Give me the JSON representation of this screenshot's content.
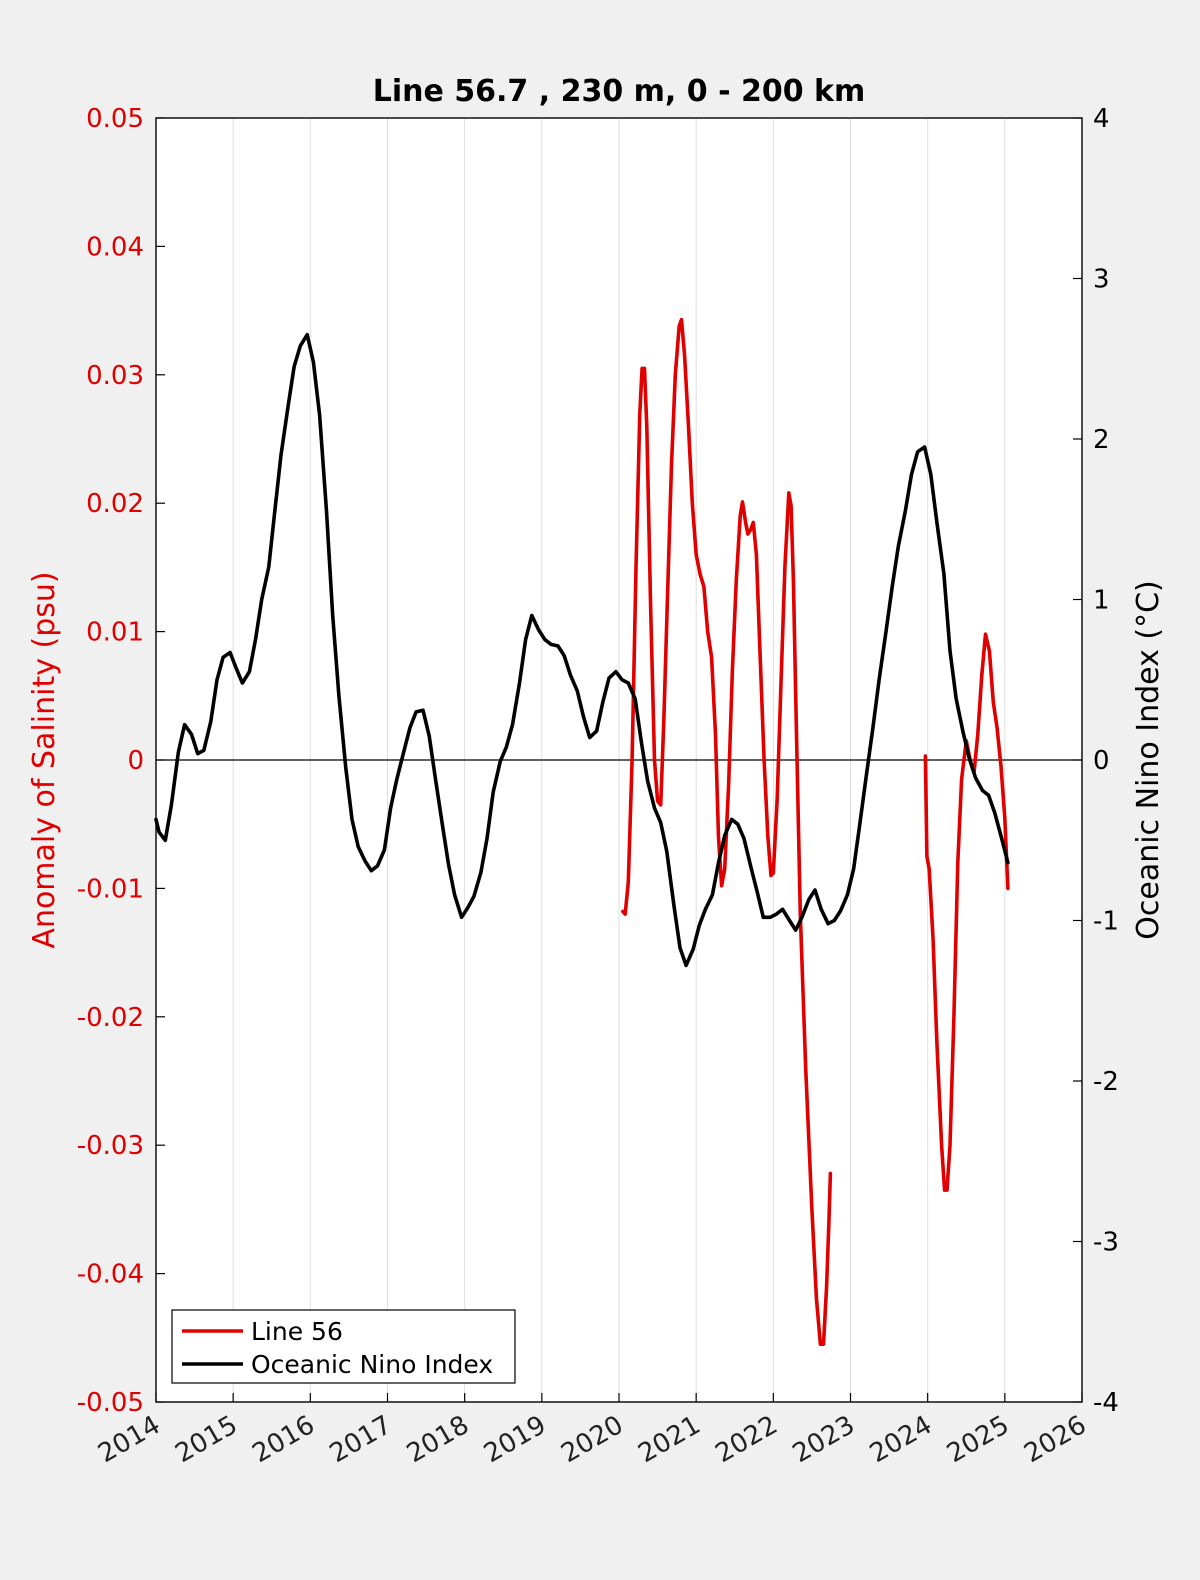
{
  "chart_data": {
    "type": "line",
    "title": "Line 56.7 , 230 m, 0 - 200 km",
    "x_ticks": [
      "2014",
      "2015",
      "2016",
      "2017",
      "2018",
      "2019",
      "2020",
      "2021",
      "2022",
      "2023",
      "2024",
      "2025",
      "2026"
    ],
    "xlim": [
      2014,
      2026
    ],
    "grid": "vertical",
    "legend_position": "bottom-left",
    "y_left": {
      "label": "Anomaly of Salinity (psu)",
      "lim": [
        -0.05,
        0.05
      ],
      "ticks": [
        "0.05",
        "0.04",
        "0.03",
        "0.02",
        "0.01",
        "0",
        "-0.01",
        "-0.02",
        "-0.03",
        "-0.04",
        "-0.05"
      ],
      "color": "#e00000"
    },
    "y_right": {
      "label": "Oceanic Nino Index (°C)",
      "lim": [
        -4,
        4
      ],
      "ticks": [
        "4",
        "3",
        "2",
        "1",
        "0",
        "-1",
        "-2",
        "-3",
        "-4"
      ],
      "color": "#000000"
    },
    "series": [
      {
        "name": "Line 56",
        "axis": "left",
        "color": "#e00000",
        "segments": [
          [
            [
              2020.05,
              -0.0118
            ],
            [
              2020.08,
              -0.012
            ],
            [
              2020.12,
              -0.0095
            ],
            [
              2020.17,
              0.0
            ],
            [
              2020.22,
              0.015
            ],
            [
              2020.27,
              0.027
            ],
            [
              2020.3,
              0.0305
            ],
            [
              2020.33,
              0.0305
            ],
            [
              2020.36,
              0.026
            ],
            [
              2020.41,
              0.012
            ],
            [
              2020.46,
              0.0
            ],
            [
              2020.5,
              -0.0032
            ],
            [
              2020.54,
              -0.0035
            ],
            [
              2020.58,
              0.003
            ],
            [
              2020.63,
              0.013
            ],
            [
              2020.68,
              0.023
            ],
            [
              2020.73,
              0.03
            ],
            [
              2020.78,
              0.0338
            ],
            [
              2020.81,
              0.0343
            ],
            [
              2020.85,
              0.0315
            ],
            [
              2020.9,
              0.026
            ],
            [
              2020.95,
              0.02
            ],
            [
              2021.0,
              0.016
            ],
            [
              2021.05,
              0.0145
            ],
            [
              2021.1,
              0.0135
            ],
            [
              2021.15,
              0.01
            ],
            [
              2021.2,
              0.008
            ],
            [
              2021.25,
              0.002
            ],
            [
              2021.29,
              -0.006
            ],
            [
              2021.33,
              -0.0098
            ],
            [
              2021.37,
              -0.0085
            ],
            [
              2021.42,
              -0.002
            ],
            [
              2021.47,
              0.007
            ],
            [
              2021.52,
              0.014
            ],
            [
              2021.57,
              0.019
            ],
            [
              2021.6,
              0.0201
            ],
            [
              2021.64,
              0.0185
            ],
            [
              2021.67,
              0.0176
            ],
            [
              2021.71,
              0.018
            ],
            [
              2021.74,
              0.0185
            ],
            [
              2021.78,
              0.016
            ],
            [
              2021.83,
              0.008
            ],
            [
              2021.88,
              0.0
            ],
            [
              2021.93,
              -0.006
            ],
            [
              2021.97,
              -0.009
            ],
            [
              2022.0,
              -0.0088
            ],
            [
              2022.05,
              -0.003
            ],
            [
              2022.1,
              0.006
            ],
            [
              2022.15,
              0.015
            ],
            [
              2022.2,
              0.0208
            ],
            [
              2022.23,
              0.0198
            ],
            [
              2022.26,
              0.014
            ],
            [
              2022.3,
              0.002
            ],
            [
              2022.35,
              -0.012
            ],
            [
              2022.42,
              -0.024
            ],
            [
              2022.5,
              -0.035
            ],
            [
              2022.56,
              -0.042
            ],
            [
              2022.61,
              -0.0455
            ],
            [
              2022.65,
              -0.0455
            ],
            [
              2022.69,
              -0.041
            ],
            [
              2022.72,
              -0.036
            ],
            [
              2022.74,
              -0.0322
            ]
          ],
          [
            [
              2023.97,
              0.0003
            ],
            [
              2023.99,
              -0.0075
            ],
            [
              2024.02,
              -0.0085
            ],
            [
              2024.07,
              -0.014
            ],
            [
              2024.12,
              -0.022
            ],
            [
              2024.18,
              -0.03
            ],
            [
              2024.22,
              -0.0335
            ],
            [
              2024.25,
              -0.0335
            ],
            [
              2024.29,
              -0.03
            ],
            [
              2024.34,
              -0.02
            ],
            [
              2024.39,
              -0.008
            ],
            [
              2024.44,
              -0.0015
            ],
            [
              2024.5,
              0.0015
            ],
            [
              2024.55,
              0.0
            ],
            [
              2024.6,
              -0.001
            ],
            [
              2024.65,
              0.002
            ],
            [
              2024.7,
              0.0065
            ],
            [
              2024.75,
              0.0098
            ],
            [
              2024.8,
              0.0085
            ],
            [
              2024.85,
              0.0045
            ],
            [
              2024.9,
              0.0025
            ],
            [
              2024.95,
              -0.0005
            ],
            [
              2025.0,
              -0.0045
            ],
            [
              2025.04,
              -0.01
            ]
          ]
        ]
      },
      {
        "name": "Oceanic Nino Index",
        "axis": "right",
        "color": "#000000",
        "segments": [
          [
            [
              2014.0,
              -0.37
            ],
            [
              2014.04,
              -0.45
            ],
            [
              2014.12,
              -0.5
            ],
            [
              2014.2,
              -0.28
            ],
            [
              2014.29,
              0.05
            ],
            [
              2014.37,
              0.22
            ],
            [
              2014.46,
              0.16
            ],
            [
              2014.54,
              0.04
            ],
            [
              2014.62,
              0.06
            ],
            [
              2014.71,
              0.24
            ],
            [
              2014.79,
              0.5
            ],
            [
              2014.87,
              0.64
            ],
            [
              2014.96,
              0.67
            ],
            [
              2015.04,
              0.57
            ],
            [
              2015.12,
              0.48
            ],
            [
              2015.21,
              0.55
            ],
            [
              2015.29,
              0.75
            ],
            [
              2015.37,
              1.0
            ],
            [
              2015.46,
              1.2
            ],
            [
              2015.54,
              1.55
            ],
            [
              2015.62,
              1.9
            ],
            [
              2015.71,
              2.2
            ],
            [
              2015.79,
              2.45
            ],
            [
              2015.87,
              2.58
            ],
            [
              2015.96,
              2.65
            ],
            [
              2016.04,
              2.48
            ],
            [
              2016.12,
              2.15
            ],
            [
              2016.21,
              1.55
            ],
            [
              2016.29,
              0.9
            ],
            [
              2016.37,
              0.4
            ],
            [
              2016.46,
              -0.05
            ],
            [
              2016.54,
              -0.37
            ],
            [
              2016.62,
              -0.54
            ],
            [
              2016.71,
              -0.63
            ],
            [
              2016.79,
              -0.69
            ],
            [
              2016.87,
              -0.66
            ],
            [
              2016.96,
              -0.56
            ],
            [
              2017.04,
              -0.3
            ],
            [
              2017.12,
              -0.12
            ],
            [
              2017.21,
              0.05
            ],
            [
              2017.29,
              0.2
            ],
            [
              2017.37,
              0.3
            ],
            [
              2017.46,
              0.31
            ],
            [
              2017.54,
              0.15
            ],
            [
              2017.62,
              -0.11
            ],
            [
              2017.71,
              -0.4
            ],
            [
              2017.79,
              -0.65
            ],
            [
              2017.87,
              -0.84
            ],
            [
              2017.96,
              -0.98
            ],
            [
              2018.04,
              -0.92
            ],
            [
              2018.12,
              -0.85
            ],
            [
              2018.21,
              -0.7
            ],
            [
              2018.29,
              -0.49
            ],
            [
              2018.37,
              -0.2
            ],
            [
              2018.46,
              -0.01
            ],
            [
              2018.54,
              0.08
            ],
            [
              2018.62,
              0.22
            ],
            [
              2018.71,
              0.48
            ],
            [
              2018.79,
              0.75
            ],
            [
              2018.87,
              0.9
            ],
            [
              2018.96,
              0.81
            ],
            [
              2019.04,
              0.75
            ],
            [
              2019.12,
              0.72
            ],
            [
              2019.21,
              0.71
            ],
            [
              2019.29,
              0.65
            ],
            [
              2019.37,
              0.53
            ],
            [
              2019.46,
              0.43
            ],
            [
              2019.54,
              0.27
            ],
            [
              2019.62,
              0.14
            ],
            [
              2019.71,
              0.18
            ],
            [
              2019.79,
              0.36
            ],
            [
              2019.87,
              0.51
            ],
            [
              2019.96,
              0.55
            ],
            [
              2020.04,
              0.5
            ],
            [
              2020.12,
              0.48
            ],
            [
              2020.21,
              0.38
            ],
            [
              2020.29,
              0.11
            ],
            [
              2020.37,
              -0.13
            ],
            [
              2020.46,
              -0.3
            ],
            [
              2020.54,
              -0.39
            ],
            [
              2020.62,
              -0.57
            ],
            [
              2020.71,
              -0.9
            ],
            [
              2020.79,
              -1.17
            ],
            [
              2020.87,
              -1.28
            ],
            [
              2020.96,
              -1.18
            ],
            [
              2021.04,
              -1.03
            ],
            [
              2021.12,
              -0.93
            ],
            [
              2021.21,
              -0.84
            ],
            [
              2021.29,
              -0.64
            ],
            [
              2021.37,
              -0.47
            ],
            [
              2021.46,
              -0.37
            ],
            [
              2021.54,
              -0.4
            ],
            [
              2021.62,
              -0.49
            ],
            [
              2021.71,
              -0.67
            ],
            [
              2021.79,
              -0.82
            ],
            [
              2021.87,
              -0.98
            ],
            [
              2021.96,
              -0.98
            ],
            [
              2022.04,
              -0.96
            ],
            [
              2022.12,
              -0.93
            ],
            [
              2022.21,
              -1.0
            ],
            [
              2022.29,
              -1.06
            ],
            [
              2022.37,
              -0.98
            ],
            [
              2022.46,
              -0.87
            ],
            [
              2022.54,
              -0.81
            ],
            [
              2022.62,
              -0.93
            ],
            [
              2022.71,
              -1.02
            ],
            [
              2022.79,
              -1.0
            ],
            [
              2022.87,
              -0.94
            ],
            [
              2022.96,
              -0.84
            ],
            [
              2023.04,
              -0.68
            ],
            [
              2023.12,
              -0.4
            ],
            [
              2023.21,
              -0.08
            ],
            [
              2023.29,
              0.2
            ],
            [
              2023.37,
              0.5
            ],
            [
              2023.46,
              0.8
            ],
            [
              2023.54,
              1.08
            ],
            [
              2023.62,
              1.33
            ],
            [
              2023.71,
              1.55
            ],
            [
              2023.79,
              1.78
            ],
            [
              2023.87,
              1.92
            ],
            [
              2023.96,
              1.95
            ],
            [
              2024.04,
              1.78
            ],
            [
              2024.12,
              1.48
            ],
            [
              2024.21,
              1.16
            ],
            [
              2024.29,
              0.68
            ],
            [
              2024.37,
              0.38
            ],
            [
              2024.46,
              0.17
            ],
            [
              2024.54,
              0.01
            ],
            [
              2024.62,
              -0.11
            ],
            [
              2024.71,
              -0.19
            ],
            [
              2024.79,
              -0.22
            ],
            [
              2024.87,
              -0.33
            ],
            [
              2024.96,
              -0.49
            ],
            [
              2025.04,
              -0.64
            ]
          ]
        ]
      }
    ]
  }
}
